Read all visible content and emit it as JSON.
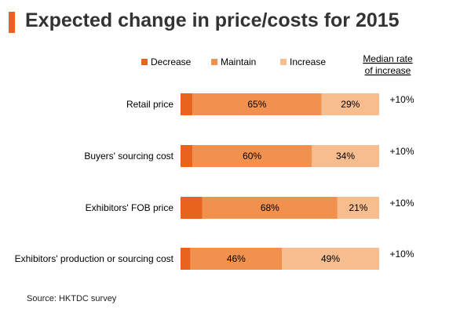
{
  "title": "Expected change in price/costs for 2015",
  "source": "Source: HKTDC  survey",
  "median_header": [
    "Median rate",
    "of increase"
  ],
  "chart_data": {
    "type": "bar",
    "orientation": "horizontal",
    "stacked": true,
    "title": "Expected change in price/costs for 2015",
    "categories": [
      "Retail price",
      "Buyers' sourcing cost",
      "Exhibitors' FOB price",
      "Exhibitors' production or sourcing cost"
    ],
    "series": [
      {
        "name": "Decrease",
        "color": "#e8641e",
        "values": [
          6,
          6,
          11,
          5
        ],
        "labels": [
          "",
          "",
          "",
          ""
        ]
      },
      {
        "name": "Maintain",
        "color": "#f2904d",
        "values": [
          65,
          60,
          68,
          46
        ],
        "labels": [
          "65%",
          "60%",
          "68%",
          "46%"
        ]
      },
      {
        "name": "Increase",
        "color": "#f7bd8f",
        "values": [
          29,
          34,
          21,
          49
        ],
        "labels": [
          "29%",
          "34%",
          "21%",
          "49%"
        ]
      }
    ],
    "median_rate": [
      "+10%",
      "+10%",
      "+10%",
      "+10%"
    ],
    "xlim": [
      0,
      100
    ],
    "legend": "top"
  }
}
